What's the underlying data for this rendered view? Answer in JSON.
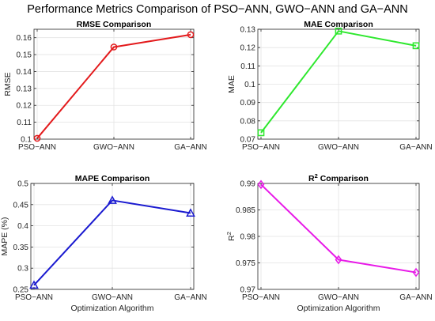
{
  "figure": {
    "title": "Performance Metrics Comparison of PSO−ANN, GWO−ANN and GA−ANN"
  },
  "chart_data": [
    {
      "type": "line",
      "title": "RMSE Comparison",
      "title_sup": "",
      "xlabel": "",
      "ylabel": "RMSE",
      "ylabel_sup": "",
      "categories": [
        "PSO−ANN",
        "GWO−ANN",
        "GA−ANN"
      ],
      "series": [
        {
          "values": [
            0.1005,
            0.1545,
            0.1618
          ],
          "color": "#e31a1c",
          "marker": "circle"
        }
      ],
      "ylim": [
        0.1,
        0.165
      ],
      "yticks": [
        0.1,
        0.11,
        0.12,
        0.13,
        0.14,
        0.15,
        0.16
      ],
      "ytick_labels": [
        "0.1",
        "0.11",
        "0.12",
        "0.13",
        "0.14",
        "0.15",
        "0.16"
      ],
      "grid": true
    },
    {
      "type": "line",
      "title": "MAE Comparison",
      "title_sup": "",
      "xlabel": "",
      "ylabel": "MAE",
      "ylabel_sup": "",
      "categories": [
        "PSO−ANN",
        "GWO−ANN",
        "GA−ANN"
      ],
      "series": [
        {
          "values": [
            0.0735,
            0.129,
            0.121
          ],
          "color": "#2ee82e",
          "marker": "square"
        }
      ],
      "ylim": [
        0.07,
        0.13
      ],
      "yticks": [
        0.07,
        0.08,
        0.09,
        0.1,
        0.11,
        0.12,
        0.13
      ],
      "ytick_labels": [
        "0.07",
        "0.08",
        "0.09",
        "0.1",
        "0.11",
        "0.12",
        "0.13"
      ],
      "grid": true
    },
    {
      "type": "line",
      "title": "MAPE Comparison",
      "title_sup": "",
      "xlabel": "Optimization Algorithm",
      "ylabel": "MAPE (%)",
      "ylabel_sup": "",
      "categories": [
        "PSO−ANN",
        "GWO−ANN",
        "GA−ANN"
      ],
      "series": [
        {
          "values": [
            0.26,
            0.46,
            0.43
          ],
          "color": "#1a1ad0",
          "marker": "triangle"
        }
      ],
      "ylim": [
        0.25,
        0.5
      ],
      "yticks": [
        0.25,
        0.3,
        0.35,
        0.4,
        0.45,
        0.5
      ],
      "ytick_labels": [
        "0.25",
        "0.3",
        "0.35",
        "0.4",
        "0.45",
        "0.5"
      ],
      "grid": true
    },
    {
      "type": "line",
      "title": "R",
      "title_sup": "2",
      "title_suffix": " Comparison",
      "xlabel": "Optimization Algorithm",
      "ylabel": "R",
      "ylabel_sup": "2",
      "categories": [
        "PSO−ANN",
        "GWO−ANN",
        "GA−ANN"
      ],
      "series": [
        {
          "values": [
            0.9898,
            0.9756,
            0.9732
          ],
          "color": "#e81ae8",
          "marker": "diamond"
        }
      ],
      "ylim": [
        0.97,
        0.99
      ],
      "yticks": [
        0.97,
        0.975,
        0.98,
        0.985,
        0.99
      ],
      "ytick_labels": [
        "0.97",
        "0.975",
        "0.98",
        "0.985",
        "0.99"
      ],
      "grid": true
    }
  ]
}
